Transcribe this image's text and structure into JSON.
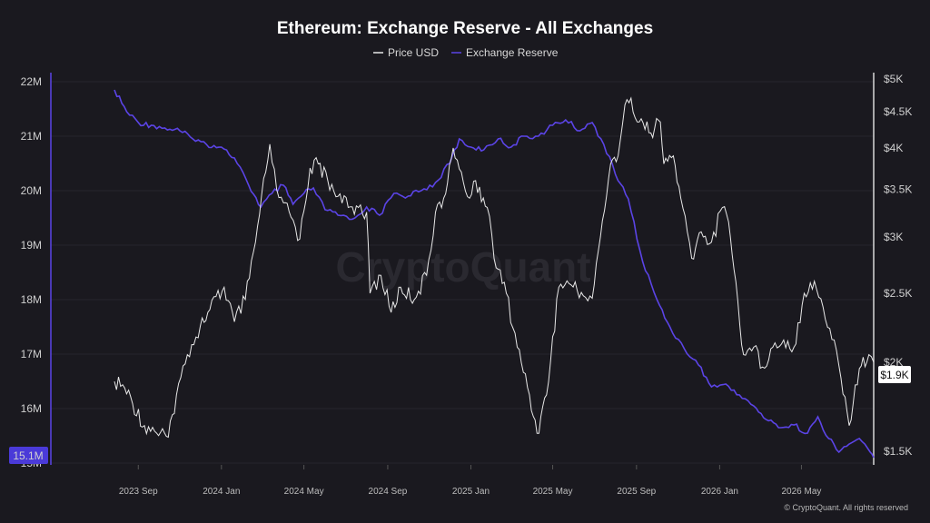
{
  "chart_data": {
    "type": "line",
    "title": "Ethereum: Exchange Reserve - All Exchanges",
    "legend": {
      "placement": "top-center",
      "items": [
        "Price USD",
        "Exchange Reserve"
      ]
    },
    "x_ticks": [
      "2023 Sep",
      "2024 Jan",
      "2024 May",
      "2024 Sep",
      "2025 Jan",
      "2025 May",
      "2025 Sep",
      "2026 Jan",
      "2026 May"
    ],
    "y_left": {
      "ticks": [
        "22M",
        "21M",
        "20M",
        "19M",
        "18M",
        "17M",
        "16M",
        "15M"
      ],
      "range": [
        15000000,
        22000000
      ],
      "current_label": "15.1M"
    },
    "y_right": {
      "scale": "log",
      "ticks": [
        "$5K",
        "$4.5K",
        "$4K",
        "$3.5K",
        "$3K",
        "$2.5K",
        "$2K",
        "$1.5K"
      ],
      "range": [
        1400,
        5000
      ],
      "current_label": "$1.9K"
    },
    "grid": true,
    "x_start": "2023-07-28",
    "x_end": "2026-08-15",
    "series": [
      {
        "name": "Price USD",
        "axis": "right",
        "color": "#e8e8e8",
        "x": [
          "2023-07-28",
          "2023-08-12",
          "2023-09-10",
          "2023-09-25",
          "2023-10-15",
          "2023-10-27",
          "2023-11-12",
          "2023-12-01",
          "2023-12-12",
          "2024-01-05",
          "2024-01-20",
          "2024-02-05",
          "2024-02-20",
          "2024-03-06",
          "2024-03-12",
          "2024-03-22",
          "2024-04-01",
          "2024-04-12",
          "2024-04-25",
          "2024-05-10",
          "2024-05-22",
          "2024-06-05",
          "2024-06-20",
          "2024-07-05",
          "2024-07-20",
          "2024-08-01",
          "2024-08-06",
          "2024-08-22",
          "2024-09-06",
          "2024-09-20",
          "2024-10-10",
          "2024-10-28",
          "2024-11-10",
          "2024-11-25",
          "2024-12-06",
          "2024-12-18",
          "2024-12-30",
          "2025-01-08",
          "2025-01-25",
          "2025-02-04",
          "2025-02-22",
          "2025-03-10",
          "2025-03-28",
          "2025-04-08",
          "2025-04-22",
          "2025-05-10",
          "2025-05-25",
          "2025-06-15",
          "2025-06-28",
          "2025-07-10",
          "2025-07-25",
          "2025-08-05",
          "2025-08-15",
          "2025-08-24",
          "2025-09-05",
          "2025-09-22",
          "2025-10-06",
          "2025-10-11",
          "2025-10-25",
          "2025-11-05",
          "2025-11-21",
          "2025-12-05",
          "2025-12-20",
          "2026-01-05",
          "2026-01-14",
          "2026-01-22",
          "2026-02-05",
          "2026-02-20",
          "2026-03-05",
          "2026-03-20",
          "2026-04-05",
          "2026-04-20",
          "2026-05-05",
          "2026-05-20",
          "2026-06-05",
          "2026-06-18",
          "2026-06-28",
          "2026-07-10",
          "2026-07-25",
          "2026-08-08",
          "2026-08-15"
        ],
        "y": [
          1880,
          1840,
          1630,
          1600,
          1570,
          1800,
          2050,
          2250,
          2350,
          2550,
          2280,
          2450,
          2950,
          3700,
          4050,
          3500,
          3350,
          3200,
          2980,
          3750,
          3800,
          3600,
          3420,
          3300,
          3300,
          3250,
          2500,
          2650,
          2350,
          2550,
          2450,
          2650,
          3250,
          3450,
          4000,
          3700,
          3400,
          3600,
          3300,
          2800,
          2500,
          2100,
          1800,
          1590,
          1800,
          2550,
          2580,
          2480,
          2460,
          3000,
          3800,
          3900,
          4600,
          4700,
          4350,
          4200,
          4350,
          3800,
          3900,
          3400,
          2800,
          3050,
          2950,
          3300,
          3150,
          2700,
          2050,
          2100,
          1970,
          2100,
          2150,
          2100,
          2500,
          2600,
          2300,
          2150,
          1900,
          1630,
          1960,
          2050,
          2000
        ]
      },
      {
        "name": "Exchange Reserve",
        "axis": "left",
        "color": "#5b44e6",
        "x": [
          "2023-07-28",
          "2023-08-15",
          "2023-09-01",
          "2023-09-20",
          "2023-10-10",
          "2023-11-01",
          "2023-11-20",
          "2023-12-10",
          "2024-01-01",
          "2024-01-20",
          "2024-02-10",
          "2024-02-28",
          "2024-03-15",
          "2024-04-01",
          "2024-04-15",
          "2024-05-01",
          "2024-05-15",
          "2024-06-01",
          "2024-06-20",
          "2024-07-15",
          "2024-08-01",
          "2024-08-20",
          "2024-09-10",
          "2024-10-01",
          "2024-10-20",
          "2024-11-10",
          "2024-12-01",
          "2024-12-15",
          "2025-01-01",
          "2025-01-20",
          "2025-02-10",
          "2025-03-01",
          "2025-03-20",
          "2025-04-10",
          "2025-05-01",
          "2025-05-20",
          "2025-06-10",
          "2025-06-28",
          "2025-07-15",
          "2025-08-01",
          "2025-08-20",
          "2025-09-10",
          "2025-10-01",
          "2025-10-20",
          "2025-11-10",
          "2025-12-01",
          "2025-12-20",
          "2026-01-10",
          "2026-01-30",
          "2026-02-20",
          "2026-03-10",
          "2026-04-01",
          "2026-04-20",
          "2026-05-10",
          "2026-05-25",
          "2026-06-10",
          "2026-06-25",
          "2026-07-10",
          "2026-07-25",
          "2026-08-10",
          "2026-08-15"
        ],
        "y": [
          21850000,
          21450000,
          21250000,
          21200000,
          21150000,
          21100000,
          20950000,
          20850000,
          20800000,
          20600000,
          20100000,
          19700000,
          19950000,
          20100000,
          19750000,
          19950000,
          20050000,
          19650000,
          19550000,
          19500000,
          19700000,
          19550000,
          19950000,
          19900000,
          20000000,
          20150000,
          20500000,
          20950000,
          20800000,
          20750000,
          20950000,
          20800000,
          21000000,
          21000000,
          21200000,
          21300000,
          21100000,
          21250000,
          20850000,
          20300000,
          19850000,
          18700000,
          18000000,
          17500000,
          17100000,
          16800000,
          16400000,
          16450000,
          16250000,
          16050000,
          15800000,
          15650000,
          15700000,
          15550000,
          15850000,
          15450000,
          15200000,
          15350000,
          15450000,
          15200000,
          15100000
        ]
      }
    ],
    "watermark": "CryptoQuant",
    "credit": "© CryptoQuant. All rights reserved"
  }
}
